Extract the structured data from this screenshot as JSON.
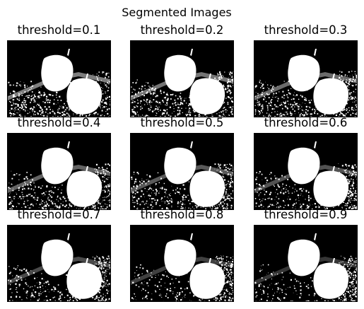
{
  "figure": {
    "suptitle": "Segmented Images"
  },
  "panels": [
    {
      "title": "threshold=0.1",
      "threshold": 0.1
    },
    {
      "title": "threshold=0.2",
      "threshold": 0.2
    },
    {
      "title": "threshold=0.3",
      "threshold": 0.3
    },
    {
      "title": "threshold=0.4",
      "threshold": 0.4
    },
    {
      "title": "threshold=0.5",
      "threshold": 0.5
    },
    {
      "title": "threshold=0.6",
      "threshold": 0.6
    },
    {
      "title": "threshold=0.7",
      "threshold": 0.7
    },
    {
      "title": "threshold=0.8",
      "threshold": 0.8
    },
    {
      "title": "threshold=0.9",
      "threshold": 0.9
    }
  ],
  "colors": {
    "foreground": "#ffffff",
    "background": "#000000"
  }
}
